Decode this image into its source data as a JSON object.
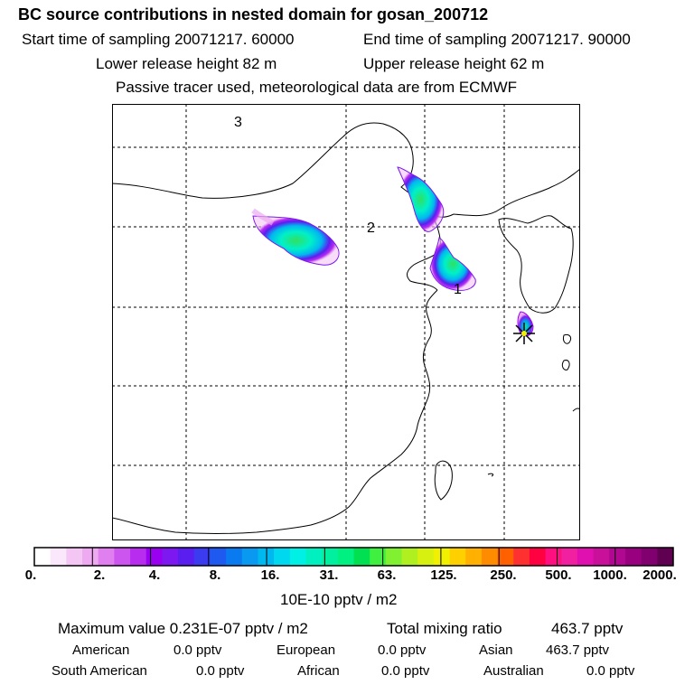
{
  "title": "BC  source contributions in nested domain for gosan_200712",
  "header": {
    "start_label": "Start time of sampling 20071217. 60000",
    "end_label": "End time of sampling 20071217. 90000",
    "lower_label": "Lower release height   82 m",
    "upper_label": "Upper release height   62 m",
    "note": "Passive tracer used, meteorological data are from ECMWF"
  },
  "map": {
    "labels": [
      "3",
      "2",
      "1"
    ],
    "receptor_marker": "asterisk-marker"
  },
  "colorbar": {
    "colors": [
      "#ffffff",
      "#fbe7fb",
      "#f4c6f4",
      "#edaaf0",
      "#e07fef",
      "#cc55f0",
      "#b82cf0",
      "#9a00f0",
      "#7d18f0",
      "#5a1ef0",
      "#3b3cf0",
      "#1e5af0",
      "#0a7af0",
      "#0a99f0",
      "#00b8f0",
      "#00d8f0",
      "#00f0e6",
      "#00f0c0",
      "#00f0a0",
      "#00f082",
      "#00e050",
      "#40f040",
      "#80f030",
      "#b0f020",
      "#d8f010",
      "#f0f000",
      "#ffd000",
      "#ffb000",
      "#ff8c00",
      "#ff6000",
      "#ff3030",
      "#ff0040",
      "#ff1080",
      "#f020a0",
      "#e010b0",
      "#c8109a",
      "#b00890",
      "#980080",
      "#800070",
      "#600050"
    ],
    "ticks": [
      "0.",
      "2.",
      "4.",
      "8.",
      "16.",
      "31.",
      "63.",
      "125.",
      "250.",
      "500.",
      "1000.",
      "2000."
    ],
    "units": "10E-10 pptv / m2"
  },
  "summary": {
    "max_value": "Maximum value  0.231E-07 pptv / m2",
    "total_label": "Total mixing ratio",
    "total_value": "463.7 pptv",
    "regions": [
      {
        "name": "American",
        "value": "0.0 pptv"
      },
      {
        "name": "European",
        "value": "0.0 pptv"
      },
      {
        "name": "Asian",
        "value": "463.7 pptv"
      },
      {
        "name": "South American",
        "value": "0.0 pptv"
      },
      {
        "name": "African",
        "value": "0.0 pptv"
      },
      {
        "name": "Australian",
        "value": "0.0 pptv"
      }
    ]
  }
}
